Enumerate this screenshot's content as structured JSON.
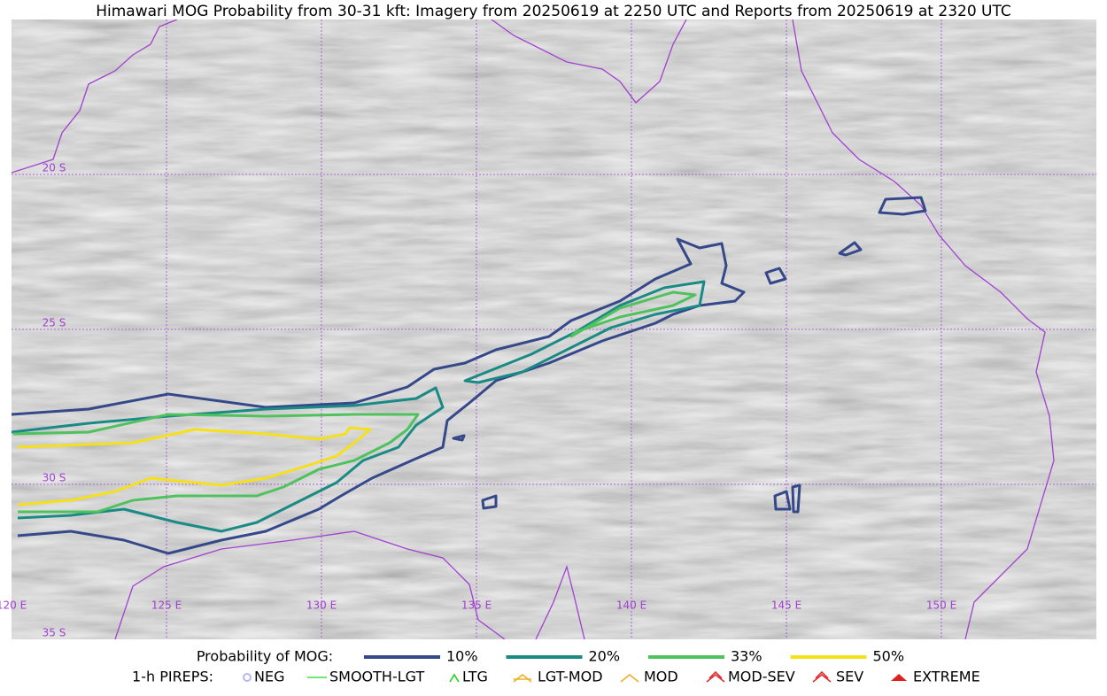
{
  "title": "Himawari MOG Probability from 30-31 kft: Imagery from 20250619 at 2250 UTC and Reports from 20250619 at 2320 UTC",
  "grid_labels": {
    "lat": [
      "20 S",
      "25 S",
      "30 S",
      "35 S"
    ],
    "lon": [
      "120 E",
      "125 E",
      "130 E",
      "135 E",
      "140 E",
      "145 E",
      "150 E"
    ]
  },
  "legend": {
    "probability": {
      "label": "Probability of MOG:",
      "items": [
        {
          "label": "10%",
          "color": "#34488a"
        },
        {
          "label": "20%",
          "color": "#1a8a84"
        },
        {
          "label": "33%",
          "color": "#4fc25e"
        },
        {
          "label": "50%",
          "color": "#f5e01a"
        }
      ]
    },
    "pireps": {
      "label": "1-h PIREPS:",
      "items": [
        {
          "label": "NEG",
          "color": "#b8b8f0"
        },
        {
          "label": "SMOOTH-LGT",
          "color": "#40e040"
        },
        {
          "label": "LTG",
          "color": "#20d020"
        },
        {
          "label": "LGT-MOD",
          "color": "#f0b020"
        },
        {
          "label": "MOD",
          "color": "#f0b020"
        },
        {
          "label": "MOD-SEV",
          "color": "#e03030"
        },
        {
          "label": "SEV",
          "color": "#e03030"
        },
        {
          "label": "EXTREME",
          "color": "#e02020"
        }
      ]
    }
  }
}
